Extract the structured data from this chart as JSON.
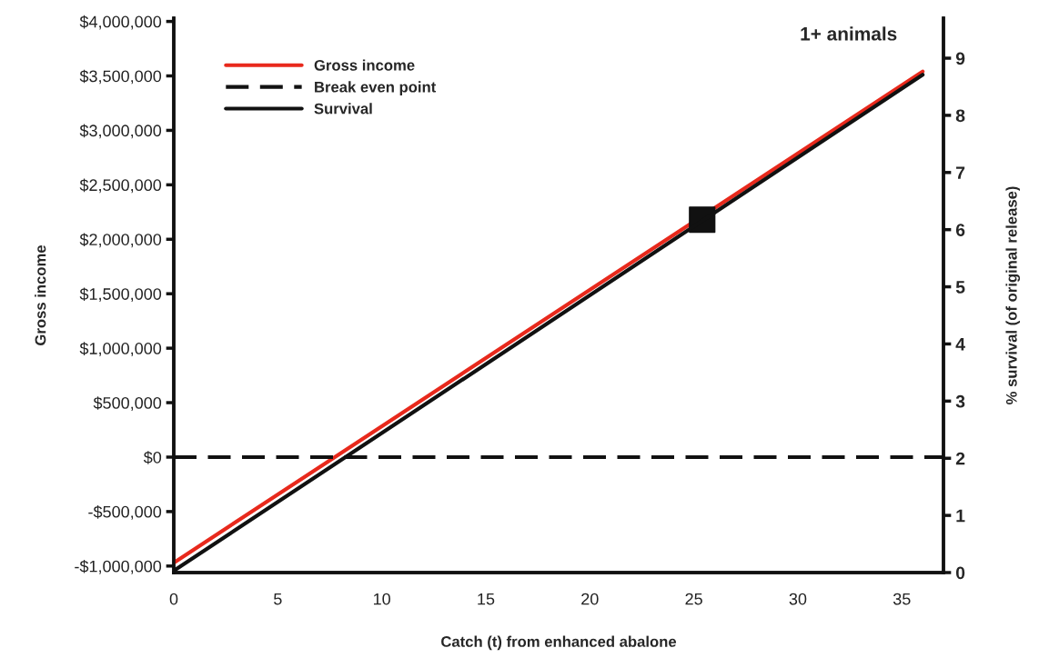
{
  "chart_data": {
    "type": "line",
    "title": "1+ animals",
    "xlabel": "Catch (t) from enhanced abalone",
    "ylabel": "Gross income",
    "y2label": "% survival (of original release)",
    "series": [
      {
        "name": "Gross income",
        "color": "#e8291c",
        "x": [
          0,
          36.0
        ],
        "values": [
          -970000,
          3540000
        ]
      },
      {
        "name": "Break even point",
        "color": "#111111",
        "x": [
          0,
          37
        ],
        "values": [
          0,
          0
        ],
        "line_style": "dashed"
      },
      {
        "name": "Survival",
        "color": "#111111",
        "x": [
          0,
          36.0
        ],
        "values": [
          0.03,
          8.71
        ],
        "axis": "y2"
      },
      {
        "type": "scatter",
        "color": "#111111",
        "x": [
          25.4
        ],
        "values": [
          2180000
        ],
        "marker": "square"
      }
    ],
    "xlim": [
      0,
      37
    ],
    "xticks": [
      0,
      5,
      10,
      15,
      20,
      25,
      30,
      35
    ],
    "ylim": [
      -1060000,
      4030000
    ],
    "yticks": [
      {
        "value": -1000000,
        "label": "-$1,000,000"
      },
      {
        "value": -500000,
        "label": "-$500,000"
      },
      {
        "value": 0,
        "label": "$0"
      },
      {
        "value": 500000,
        "label": "$500,000"
      },
      {
        "value": 1000000,
        "label": "$1,000,000"
      },
      {
        "value": 1500000,
        "label": "$1,500,000"
      },
      {
        "value": 2000000,
        "label": "$2,000,000"
      },
      {
        "value": 2500000,
        "label": "$2,500,000"
      },
      {
        "value": 3000000,
        "label": "$3,000,000"
      },
      {
        "value": 3500000,
        "label": "$3,500,000"
      },
      {
        "value": 4000000,
        "label": "$4,000,000"
      }
    ],
    "y2lim": [
      0,
      9.7
    ],
    "y2ticks": [
      0,
      1,
      2,
      3,
      4,
      5,
      6,
      7,
      8,
      9
    ],
    "legend": "top left",
    "grid": false
  }
}
